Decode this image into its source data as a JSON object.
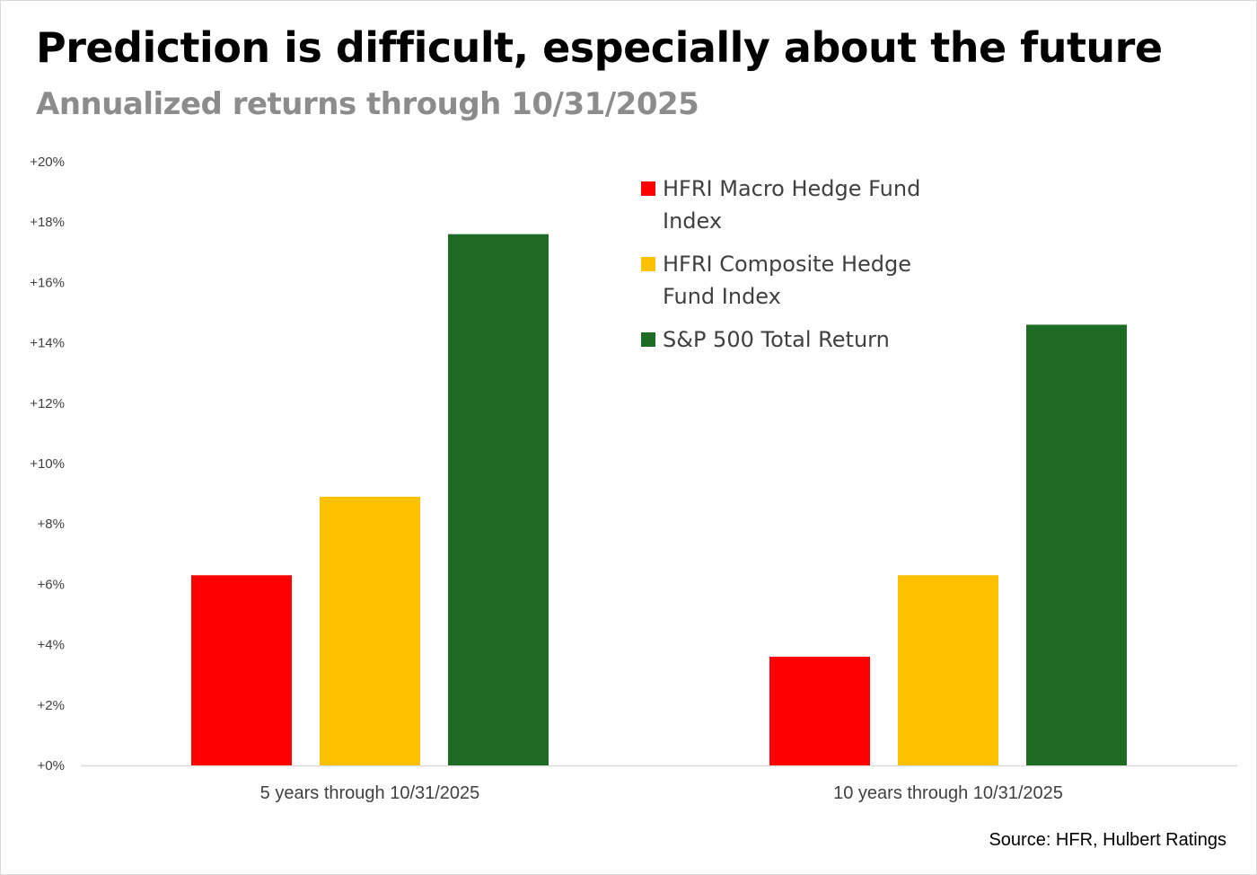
{
  "title": "Prediction is difficult, especially about the future",
  "subtitle": "Annualized returns through 10/31/2025",
  "source": "Source: HFR, Hulbert Ratings",
  "chart_data": {
    "type": "bar",
    "categories": [
      "5 years through 10/31/2025",
      "10 years through 10/31/2025"
    ],
    "series": [
      {
        "name": "HFRI Macro Hedge Fund Index",
        "color": "#ff0000",
        "values": [
          6.3,
          3.6
        ]
      },
      {
        "name": "HFRI Composite Hedge Fund Index",
        "color": "#ffc000",
        "values": [
          8.9,
          6.3
        ]
      },
      {
        "name": "S&P 500 Total Return",
        "color": "#1e6b25",
        "values": [
          17.6,
          14.6
        ]
      }
    ],
    "ylim": [
      0,
      20
    ],
    "yticks": [
      "+0%",
      "+2%",
      "+4%",
      "+6%",
      "+8%",
      "+10%",
      "+12%",
      "+14%",
      "+16%",
      "+18%",
      "+20%"
    ],
    "xlabel": "",
    "ylabel": "",
    "grid": false,
    "legend_position": "top-center"
  }
}
